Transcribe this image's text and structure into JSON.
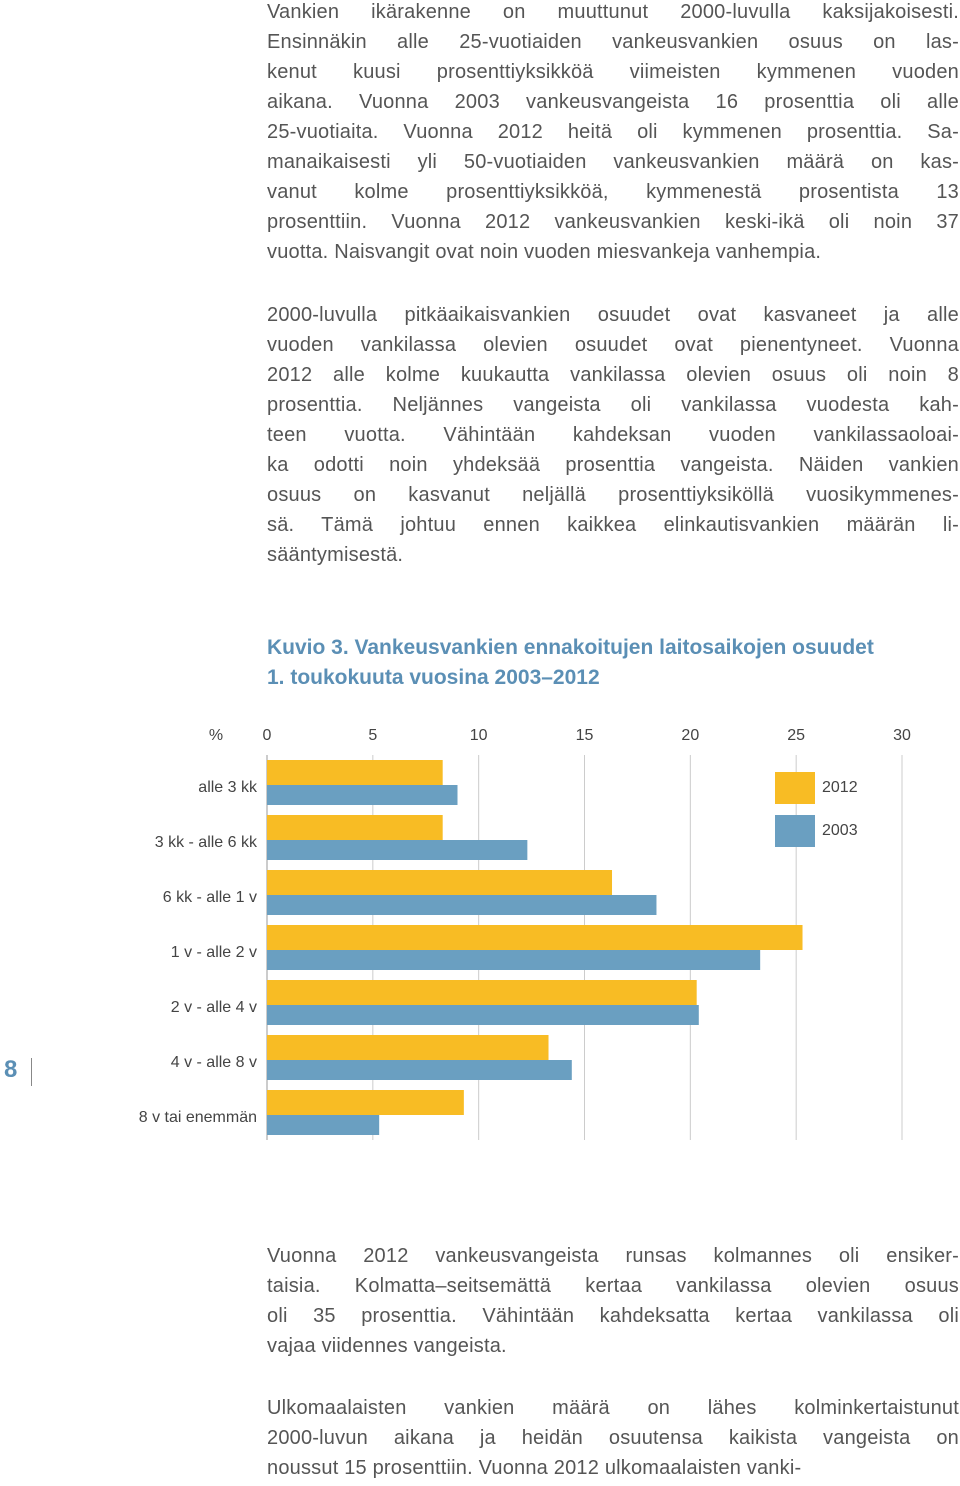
{
  "paragraphs": [
    {
      "lines": [
        "Vankien ikärakenne on muuttunut 2000-luvulla kaksijakoisesti.",
        "Ensinnäkin alle 25-vuotiaiden vankeusvankien osuus on las-",
        "kenut kuusi prosenttiyksikköä viimeisten kymmenen vuoden",
        "aikana. Vuonna 2003 vankeusvangeista 16 prosenttia oli alle",
        "25-vuotiaita. Vuonna 2012 heitä oli kymmenen prosenttia. Sa-",
        "manaikaisesti yli 50-vuotiaiden vankeusvankien määrä on kas-",
        "vanut kolme prosenttiyksikköä, kymmenestä prosentista 13",
        "prosenttiin. Vuonna 2012 vankeusvankien keski-ikä oli noin 37",
        "vuotta. Naisvangit ovat noin vuoden miesvankeja vanhempia."
      ]
    },
    {
      "lines": [
        "2000-luvulla pitkäaikaisvankien osuudet ovat kasvaneet ja alle",
        "vuoden vankilassa olevien osuudet ovat pienentyneet. Vuonna",
        "2012 alle kolme kuukautta vankilassa olevien osuus oli noin 8",
        "prosenttia. Neljännes vangeista oli vankilassa vuodesta kah-",
        "teen vuotta. Vähintään kahdeksan vuoden vankilassaoloai-",
        "ka odotti noin yhdeksää prosenttia vangeista. Näiden vankien",
        "osuus on kasvanut neljällä prosenttiyksiköllä vuosikymmenes-",
        "sä. Tämä johtuu ennen kaikkea elinkautisvankien määrän li-",
        "sääntymisestä."
      ]
    },
    {
      "lines": [
        "Vuonna 2012 vankeusvangeista runsas kolmannes oli ensiker-",
        "taisia. Kolmatta–seitsemättä kertaa vankilassa olevien osuus",
        "oli 35 prosenttia. Vähintään kahdeksatta kertaa vankilassa oli",
        "vajaa viidennes vangeista."
      ]
    },
    {
      "lines": [
        "Ulkomaalaisten vankien määrä on lähes kolminkertaistunut",
        "2000-luvun aikana ja heidän osuutensa kaikista vangeista on",
        "noussut 15 prosenttiin. Vuonna 2012 ulkomaalaisten vanki-"
      ]
    }
  ],
  "page_number": "8",
  "chart_data": {
    "type": "bar",
    "orientation": "horizontal",
    "title": [
      "Kuvio 3. Vankeusvankien ennakoitujen laitosaikojen osuudet",
      "1. toukokuuta vuosina 2003–2012"
    ],
    "x_unit": "%",
    "categories": [
      "alle 3 kk",
      "3 kk - alle 6 kk",
      "6 kk - alle 1 v",
      "1 v - alle 2 v",
      "2 v - alle 4 v",
      "4 v - alle 8 v",
      "8 v tai enemmän"
    ],
    "series": [
      {
        "name": "2012",
        "color": "#f8bc24",
        "values": [
          8.3,
          8.3,
          16.3,
          25.3,
          20.3,
          13.3,
          9.3
        ]
      },
      {
        "name": "2003",
        "color": "#6a9fc1",
        "values": [
          9.0,
          12.3,
          18.4,
          23.3,
          20.4,
          14.4,
          5.3
        ]
      }
    ],
    "xlim": [
      0,
      30
    ],
    "xticks": [
      0,
      5,
      10,
      15,
      20,
      25,
      30
    ],
    "grid": true
  }
}
